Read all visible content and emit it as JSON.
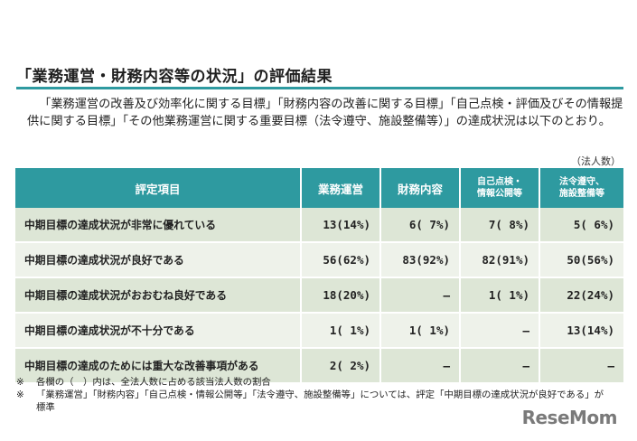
{
  "title": "「業務運営・財務内容等の状況」の評価結果",
  "intro": "「業務運営の改善及び効率化に関する目標」「財務内容の改善に関する目標」「自己点検・評価及びその情報提供に関する目標」「その他業務運営に関する重要目標（法令遵守、施設整備等）」の達成状況は以下のとおり。",
  "unit": "（法人数）",
  "table": {
    "headers": {
      "item": "評定項目",
      "col1": "業務運営",
      "col2": "財務内容",
      "col3_line1": "自己点検・",
      "col3_line2": "情報公開等",
      "col4_line1": "法令遵守、",
      "col4_line2": "施設整備等"
    },
    "rows": [
      {
        "item": "中期目標の達成状況が非常に優れている",
        "c1": "13(14%)",
        "c2": "6( 7%)",
        "c3": "7( 8%)",
        "c4": "5( 6%)"
      },
      {
        "item": "中期目標の達成状況が良好である",
        "c1": "56(62%)",
        "c2": "83(92%)",
        "c3": "82(91%)",
        "c4": "50(56%)"
      },
      {
        "item": "中期目標の達成状況がおおむね良好である",
        "c1": "18(20%)",
        "c2": "–",
        "c3": "1( 1%)",
        "c4": "22(24%)"
      },
      {
        "item": "中期目標の達成状況が不十分である",
        "c1": "1( 1%)",
        "c2": "1( 1%)",
        "c3": "–",
        "c4": "13(14%)"
      },
      {
        "item": "中期目標の達成のためには重大な改善事項がある",
        "c1": "2( 2%)",
        "c2": "–",
        "c3": "–",
        "c4": "–"
      }
    ]
  },
  "notes": [
    {
      "mark": "※",
      "text": "各欄の（　）内は、全法人数に占める該当法人数の割合"
    },
    {
      "mark": "※",
      "text": "「業務運営」「財務内容」「自己点検・情報公開等」「法令遵守、施設整備等」については、評定「中期目標の達成状況が良好である」が標準"
    }
  ],
  "logo": "ReseMom"
}
